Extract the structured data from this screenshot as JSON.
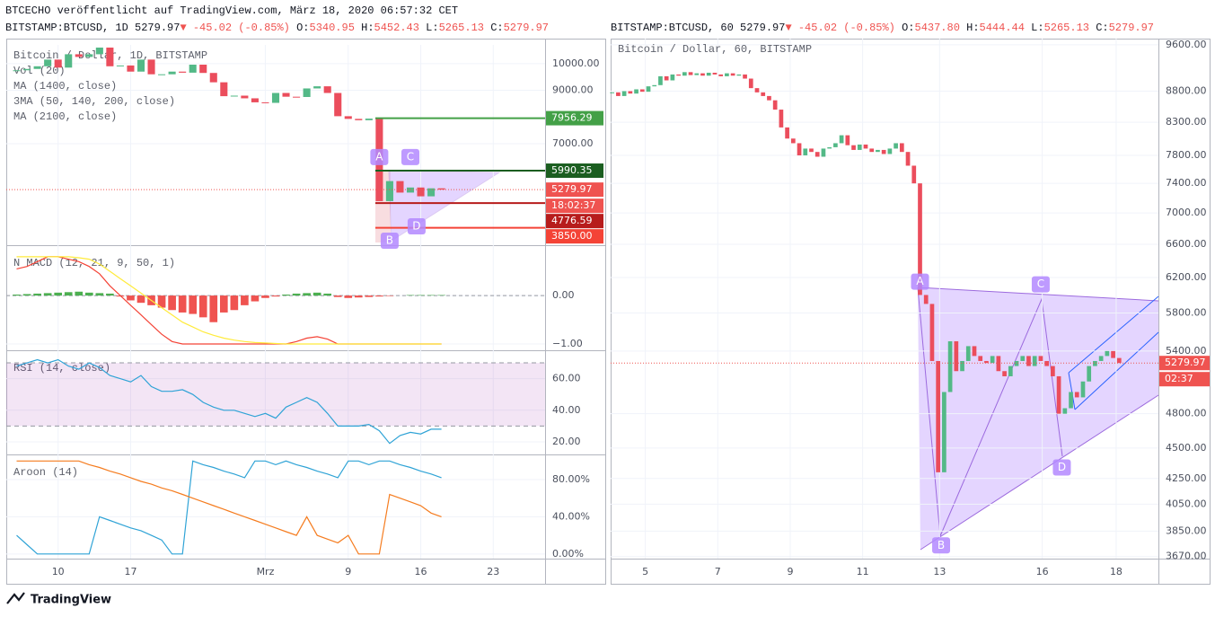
{
  "header": {
    "published": "BTCECHO veröffentlicht auf TradingView.com, März 18, 2020 06:57:32 CET"
  },
  "chart_data": [
    {
      "type": "candlestick",
      "symbol": "BITSTAMP:BTCUSD, 1D",
      "price": "5279.97",
      "change": "-45.02 (-0.85%)",
      "ohlc": [
        {
          "key": "O:",
          "value": "5340.95"
        },
        {
          "key": "H:",
          "value": "5452.43"
        },
        {
          "key": "L:",
          "value": "5265.13"
        },
        {
          "key": "C:",
          "value": "5279.97"
        }
      ],
      "legend": [
        "Bitcoin / Dollar, 1D, BITSTAMP",
        "Vol (20)",
        "MA (1400, close)",
        "3MA (50, 140, 200, close)",
        "MA (2100, close)"
      ],
      "values": [
        9750,
        9800,
        9900,
        10150,
        9850,
        10350,
        10250,
        10350,
        10600,
        9900,
        9930,
        9700,
        10150,
        9600,
        9600,
        9700,
        9660,
        9960,
        9650,
        9300,
        8780,
        8800,
        8700,
        8550,
        8530,
        8900,
        8760,
        8750,
        9070,
        9150,
        8900,
        8030,
        7930,
        7880,
        7940,
        4850,
        5600,
        5170,
        5360,
        5030,
        5330,
        5280
      ],
      "colors": {
        "up": "#53b987",
        "down": "#eb4d5c"
      },
      "xlim": [
        -1,
        51
      ],
      "xticks": [
        {
          "value": 4,
          "label": "10"
        },
        {
          "value": 11,
          "label": "17"
        },
        {
          "value": 24,
          "label": "Mrz"
        },
        {
          "value": 32,
          "label": "9"
        },
        {
          "value": 39,
          "label": "16"
        },
        {
          "value": 46,
          "label": "23"
        }
      ],
      "ylim": [
        3200,
        10700
      ],
      "yticks": [
        {
          "value": 10000,
          "label": "10000.00"
        },
        {
          "value": 9000,
          "label": "9000.00"
        },
        {
          "value": 7000,
          "label": "7000.00"
        }
      ],
      "last": {
        "value": 5279.97,
        "label": "5279.97"
      },
      "countdown": "18:02:37",
      "levels": [
        {
          "value": 7956.29,
          "label": "7956.29",
          "color": "#43a047"
        },
        {
          "value": 5990.35,
          "label": "5990.35",
          "color": "#1b5e20"
        },
        {
          "value": 4776.59,
          "label": "4776.59",
          "color": "#b71c1c"
        },
        {
          "value": 3850,
          "label": "3850.00",
          "color": "#f44336"
        }
      ],
      "markers": [
        {
          "label": "A",
          "x": 35,
          "y": 6500
        },
        {
          "label": "B",
          "x": 36,
          "y": 3367
        },
        {
          "label": "C",
          "x": 38,
          "y": 6500
        },
        {
          "label": "D",
          "x": 38.6,
          "y": 3906
        }
      ],
      "grid": true
    },
    {
      "type": "macd",
      "title": "N MACD (12, 21, 9, 50, 1)",
      "histogram": [
        0.02,
        0.03,
        0.04,
        0.05,
        0.06,
        0.07,
        0.08,
        0.06,
        0.05,
        0.04,
        -0.02,
        -0.1,
        -0.15,
        -0.2,
        -0.25,
        -0.3,
        -0.35,
        -0.38,
        -0.45,
        -0.55,
        -0.35,
        -0.3,
        -0.2,
        -0.12,
        -0.05,
        -0.02,
        0.02,
        0.04,
        0.05,
        0.06,
        0.04,
        -0.03,
        -0.05,
        -0.04,
        -0.03,
        -0.02,
        -0.01,
        0,
        0.01,
        0.01,
        0.01,
        0.01
      ],
      "colors": {
        "up": "#4caf50",
        "down": "#ef5350"
      },
      "series": [
        {
          "color": "#f44336",
          "values": [
            0.55,
            0.6,
            0.7,
            0.8,
            0.8,
            0.75,
            0.7,
            0.6,
            0.45,
            0.2,
            0,
            -0.2,
            -0.4,
            -0.6,
            -0.8,
            -0.95,
            -1,
            -1,
            -1,
            -1,
            -1,
            -1,
            -1,
            -1,
            -1,
            -1,
            -1,
            -0.95,
            -0.88,
            -0.85,
            -0.9,
            -1,
            -1,
            -1,
            -1,
            -1,
            -1,
            -1,
            -1,
            -1,
            -1,
            -1
          ]
        },
        {
          "color": "#ffeb3b",
          "values": [
            0.8,
            0.8,
            0.8,
            0.8,
            0.8,
            0.8,
            0.78,
            0.75,
            0.65,
            0.5,
            0.35,
            0.2,
            0.05,
            -0.1,
            -0.25,
            -0.4,
            -0.55,
            -0.65,
            -0.75,
            -0.82,
            -0.88,
            -0.92,
            -0.95,
            -0.97,
            -0.98,
            -0.99,
            -1,
            -1,
            -1,
            -1,
            -1,
            -1,
            -1,
            -1,
            -1,
            -1,
            -1,
            -1,
            -1,
            -1,
            -1,
            -1
          ]
        }
      ],
      "ylim": [
        -1.13,
        1.04
      ],
      "yticks": [
        {
          "value": 0,
          "label": "0.00"
        },
        {
          "value": -1,
          "label": "−1.00"
        }
      ],
      "grid": true
    },
    {
      "type": "line",
      "title": "RSI (14, close)",
      "band": [
        30,
        70
      ],
      "series": [
        {
          "color": "#2fa3d6",
          "values": [
            68,
            70,
            72,
            70,
            72,
            68,
            66,
            70,
            67,
            62,
            60,
            58,
            62,
            55,
            52,
            52,
            53,
            50,
            45,
            42,
            40,
            40,
            38,
            36,
            38,
            35,
            42,
            45,
            48,
            45,
            38,
            30,
            30,
            30,
            31,
            27,
            19,
            24,
            26,
            25,
            28,
            28
          ]
        }
      ],
      "ylim": [
        12,
        78
      ],
      "yticks": [
        {
          "value": 60,
          "label": "60.00"
        },
        {
          "value": 40,
          "label": "40.00"
        },
        {
          "value": 20,
          "label": "20.00"
        }
      ],
      "grid": true
    },
    {
      "type": "line",
      "title": "Aroon (14)",
      "series": [
        {
          "color": "#2fa3d6",
          "values": [
            20,
            10,
            0,
            0,
            0,
            0,
            0,
            0,
            40,
            36,
            32,
            28,
            25,
            20,
            15,
            0,
            0,
            100,
            96,
            93,
            89,
            86,
            82,
            100,
            100,
            96,
            100,
            96,
            93,
            89,
            86,
            82,
            100,
            100,
            96,
            100,
            100,
            96,
            93,
            89,
            86,
            82
          ]
        },
        {
          "color": "#f57c1f",
          "values": [
            100,
            100,
            100,
            100,
            100,
            100,
            100,
            96,
            93,
            89,
            86,
            82,
            78,
            75,
            71,
            68,
            64,
            60,
            56,
            52,
            48,
            44,
            40,
            36,
            32,
            28,
            24,
            20,
            40,
            20,
            16,
            12,
            20,
            0,
            0,
            0,
            64,
            60,
            56,
            52,
            44,
            40
          ]
        }
      ],
      "ylim": [
        -5,
        107
      ],
      "yticks": [
        {
          "value": 80,
          "label": "80.00%"
        },
        {
          "value": 40,
          "label": "40.00%"
        },
        {
          "value": 0,
          "label": "0.00%"
        }
      ],
      "grid": true
    },
    {
      "type": "candlestick",
      "symbol": "BITSTAMP:BTCUSD, 60",
      "price": "5279.97",
      "change": "-45.02 (-0.85%)",
      "ohlc": [
        {
          "key": "O:",
          "value": "5437.80"
        },
        {
          "key": "H:",
          "value": "5444.44"
        },
        {
          "key": "L:",
          "value": "5265.13"
        },
        {
          "key": "C:",
          "value": "5279.97"
        }
      ],
      "legend": [
        "Bitcoin / Dollar, 60, BITSTAMP"
      ],
      "x": [
        1,
        5,
        9,
        13,
        17,
        21,
        25,
        29,
        33,
        37,
        41,
        45,
        49,
        53,
        57,
        61,
        65,
        69,
        73,
        77,
        81,
        85,
        89,
        93,
        97,
        101,
        105,
        109,
        113,
        117,
        121,
        125,
        129,
        133,
        137,
        141,
        145,
        149,
        153,
        157,
        161,
        165,
        169,
        173,
        177,
        181,
        185,
        189,
        193,
        197,
        201,
        205,
        209,
        213,
        217,
        221,
        225,
        229,
        233,
        237,
        241,
        245,
        249,
        253,
        257,
        261,
        265,
        269,
        273,
        277,
        281,
        285,
        289,
        293,
        297,
        301,
        305,
        309,
        313,
        317,
        321,
        325,
        329,
        333,
        337
      ],
      "values": [
        8780,
        8720,
        8800,
        8760,
        8830,
        8790,
        8880,
        8900,
        9050,
        8980,
        9080,
        9060,
        9120,
        9070,
        9100,
        9060,
        9110,
        9080,
        9050,
        9100,
        9060,
        9080,
        9010,
        8850,
        8780,
        8720,
        8650,
        8500,
        8220,
        8050,
        7980,
        7800,
        7900,
        7850,
        7780,
        7900,
        7920,
        7980,
        8100,
        7950,
        7880,
        7960,
        7900,
        7850,
        7880,
        7820,
        7900,
        7980,
        7850,
        7650,
        7400,
        6000,
        5900,
        5300,
        4300,
        5000,
        5500,
        5200,
        5300,
        5450,
        5350,
        5300,
        5280,
        5350,
        5200,
        5150,
        5250,
        5300,
        5350,
        5250,
        5350,
        5300,
        5250,
        5150,
        4800,
        4850,
        5000,
        4950,
        5100,
        5250,
        5300,
        5350,
        5400,
        5330,
        5280
      ],
      "colors": {
        "up": "#53b987",
        "down": "#eb4d5c"
      },
      "xlim": [
        0,
        363
      ],
      "xticks": [
        {
          "value": 23,
          "label": "5"
        },
        {
          "value": 71,
          "label": "7"
        },
        {
          "value": 119,
          "label": "9"
        },
        {
          "value": 167,
          "label": "11"
        },
        {
          "value": 218,
          "label": "13"
        },
        {
          "value": 286,
          "label": "16"
        },
        {
          "value": 335,
          "label": "18"
        }
      ],
      "log": true,
      "ylim": [
        3656,
        9713
      ],
      "yticks": [
        {
          "value": 9600,
          "label": "9600.00"
        },
        {
          "value": 8800,
          "label": "8800.00"
        },
        {
          "value": 8300,
          "label": "8300.00"
        },
        {
          "value": 7800,
          "label": "7800.00"
        },
        {
          "value": 7400,
          "label": "7400.00"
        },
        {
          "value": 7000,
          "label": "7000.00"
        },
        {
          "value": 6600,
          "label": "6600.00"
        },
        {
          "value": 6200,
          "label": "6200.00"
        },
        {
          "value": 5800,
          "label": "5800.00"
        },
        {
          "value": 5400,
          "label": "5400.00"
        },
        {
          "value": 4800,
          "label": "4800.00"
        },
        {
          "value": 4500,
          "label": "4500.00"
        },
        {
          "value": 4250,
          "label": "4250.00"
        },
        {
          "value": 4050,
          "label": "4050.00"
        },
        {
          "value": 3850,
          "label": "3850.00"
        },
        {
          "value": 3670,
          "label": "3670.00"
        }
      ],
      "last": {
        "value": 5279.97,
        "label": "5279.97"
      },
      "countdown": "02:37",
      "markers": [
        {
          "label": "A",
          "x": 205,
          "y": 6152
        },
        {
          "label": "B",
          "x": 219,
          "y": 3748
        },
        {
          "label": "C",
          "x": 285,
          "y": 6121
        },
        {
          "label": "D",
          "x": 299,
          "y": 4339
        }
      ],
      "grid": true
    }
  ],
  "footer": {
    "brand": "TradingView"
  }
}
